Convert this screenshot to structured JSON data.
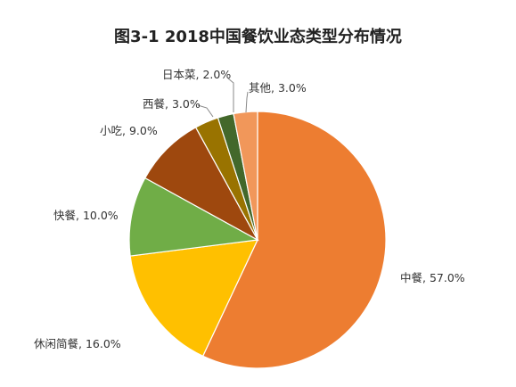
{
  "chart_data": {
    "type": "pie",
    "title": "图3-1  2018中国餐饮业态类型分布情况",
    "slices": [
      {
        "label": "中餐",
        "value": 57.0,
        "value_text": "57.0%",
        "color": "#ED7D31"
      },
      {
        "label": "休闲简餐",
        "value": 16.0,
        "value_text": "16.0%",
        "color": "#FFC000"
      },
      {
        "label": "快餐",
        "value": 10.0,
        "value_text": "10.0%",
        "color": "#70AD47"
      },
      {
        "label": "小吃",
        "value": 9.0,
        "value_text": "9.0%",
        "color": "#9E480E"
      },
      {
        "label": "西餐",
        "value": 3.0,
        "value_text": "3.0%",
        "color": "#997300"
      },
      {
        "label": "日本菜",
        "value": 2.0,
        "value_text": "2.0%",
        "color": "#43682B"
      },
      {
        "label": "其他",
        "value": 3.0,
        "value_text": "3.0%",
        "color": "#F1975A"
      }
    ],
    "legend": "none",
    "label_placement": "outside"
  }
}
